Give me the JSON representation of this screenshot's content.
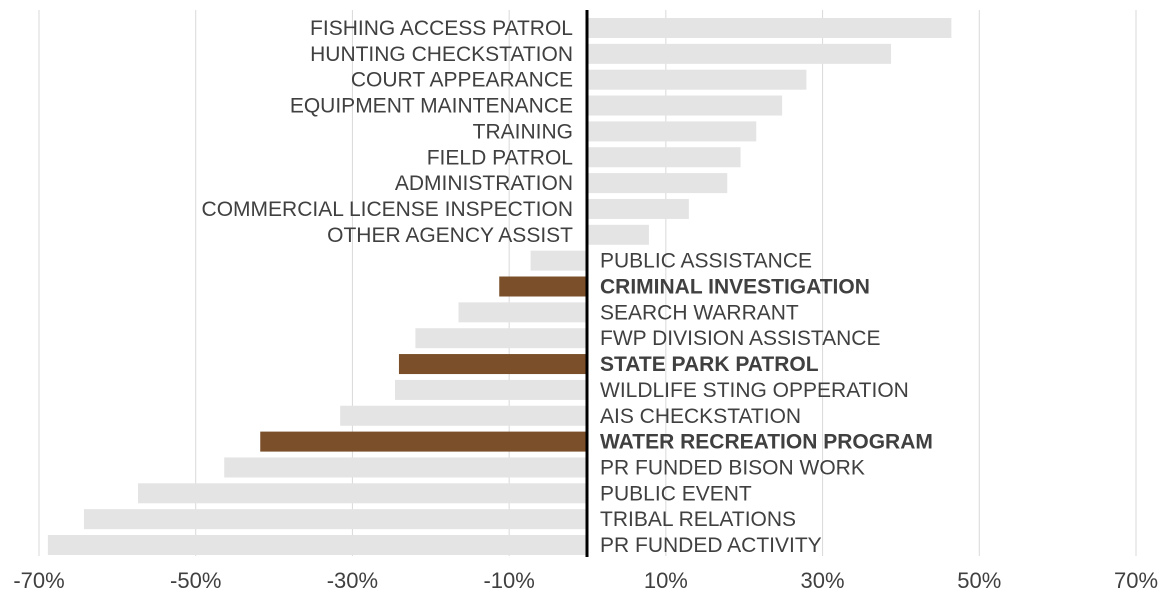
{
  "chart_data": {
    "type": "bar",
    "orientation": "horizontal",
    "title": "",
    "xlabel": "",
    "ylabel": "",
    "xlim": [
      -70,
      70
    ],
    "x_ticks": [
      -70,
      -50,
      -30,
      -10,
      10,
      30,
      50,
      70
    ],
    "tick_labels": [
      "-70%",
      "-50%",
      "-30%",
      "-10%",
      "10%",
      "30%",
      "50%",
      "70%"
    ],
    "value_unit": "%",
    "grid": "vertical",
    "legend": "none",
    "colors": {
      "default": "#e4e4e4",
      "highlight": "#7a4f2a",
      "zero_line": "#000000",
      "grid": "#d9d9d9",
      "text": "#404040"
    },
    "categories": [
      "FISHING ACCESS PATROL",
      "HUNTING CHECKSTATION",
      "COURT APPEARANCE",
      "EQUIPMENT MAINTENANCE",
      "TRAINING",
      "FIELD PATROL",
      "ADMINISTRATION",
      "COMMERCIAL LICENSE INSPECTION",
      "OTHER AGENCY ASSIST",
      "PUBLIC ASSISTANCE",
      "CRIMINAL INVESTIGATION",
      "SEARCH WARRANT",
      "FWP DIVISION ASSISTANCE",
      "STATE PARK PATROL",
      "WILDLIFE STING OPPERATION",
      "AIS CHECKSTATION",
      "WATER RECREATION PROGRAM",
      "PR FUNDED BISON WORK",
      "PUBLIC EVENT",
      "TRIBAL RELATIONS",
      "PR FUNDED ACTIVITY"
    ],
    "values": [
      46.5,
      38.8,
      28.0,
      24.9,
      21.6,
      19.6,
      17.9,
      13.0,
      7.9,
      -7.2,
      -11.2,
      -16.4,
      -21.9,
      -24.0,
      -24.5,
      -31.5,
      -41.7,
      -46.3,
      -57.3,
      -64.2,
      -68.8
    ],
    "highlighted": [
      "CRIMINAL INVESTIGATION",
      "STATE PARK PATROL",
      "WATER RECREATION PROGRAM"
    ]
  }
}
